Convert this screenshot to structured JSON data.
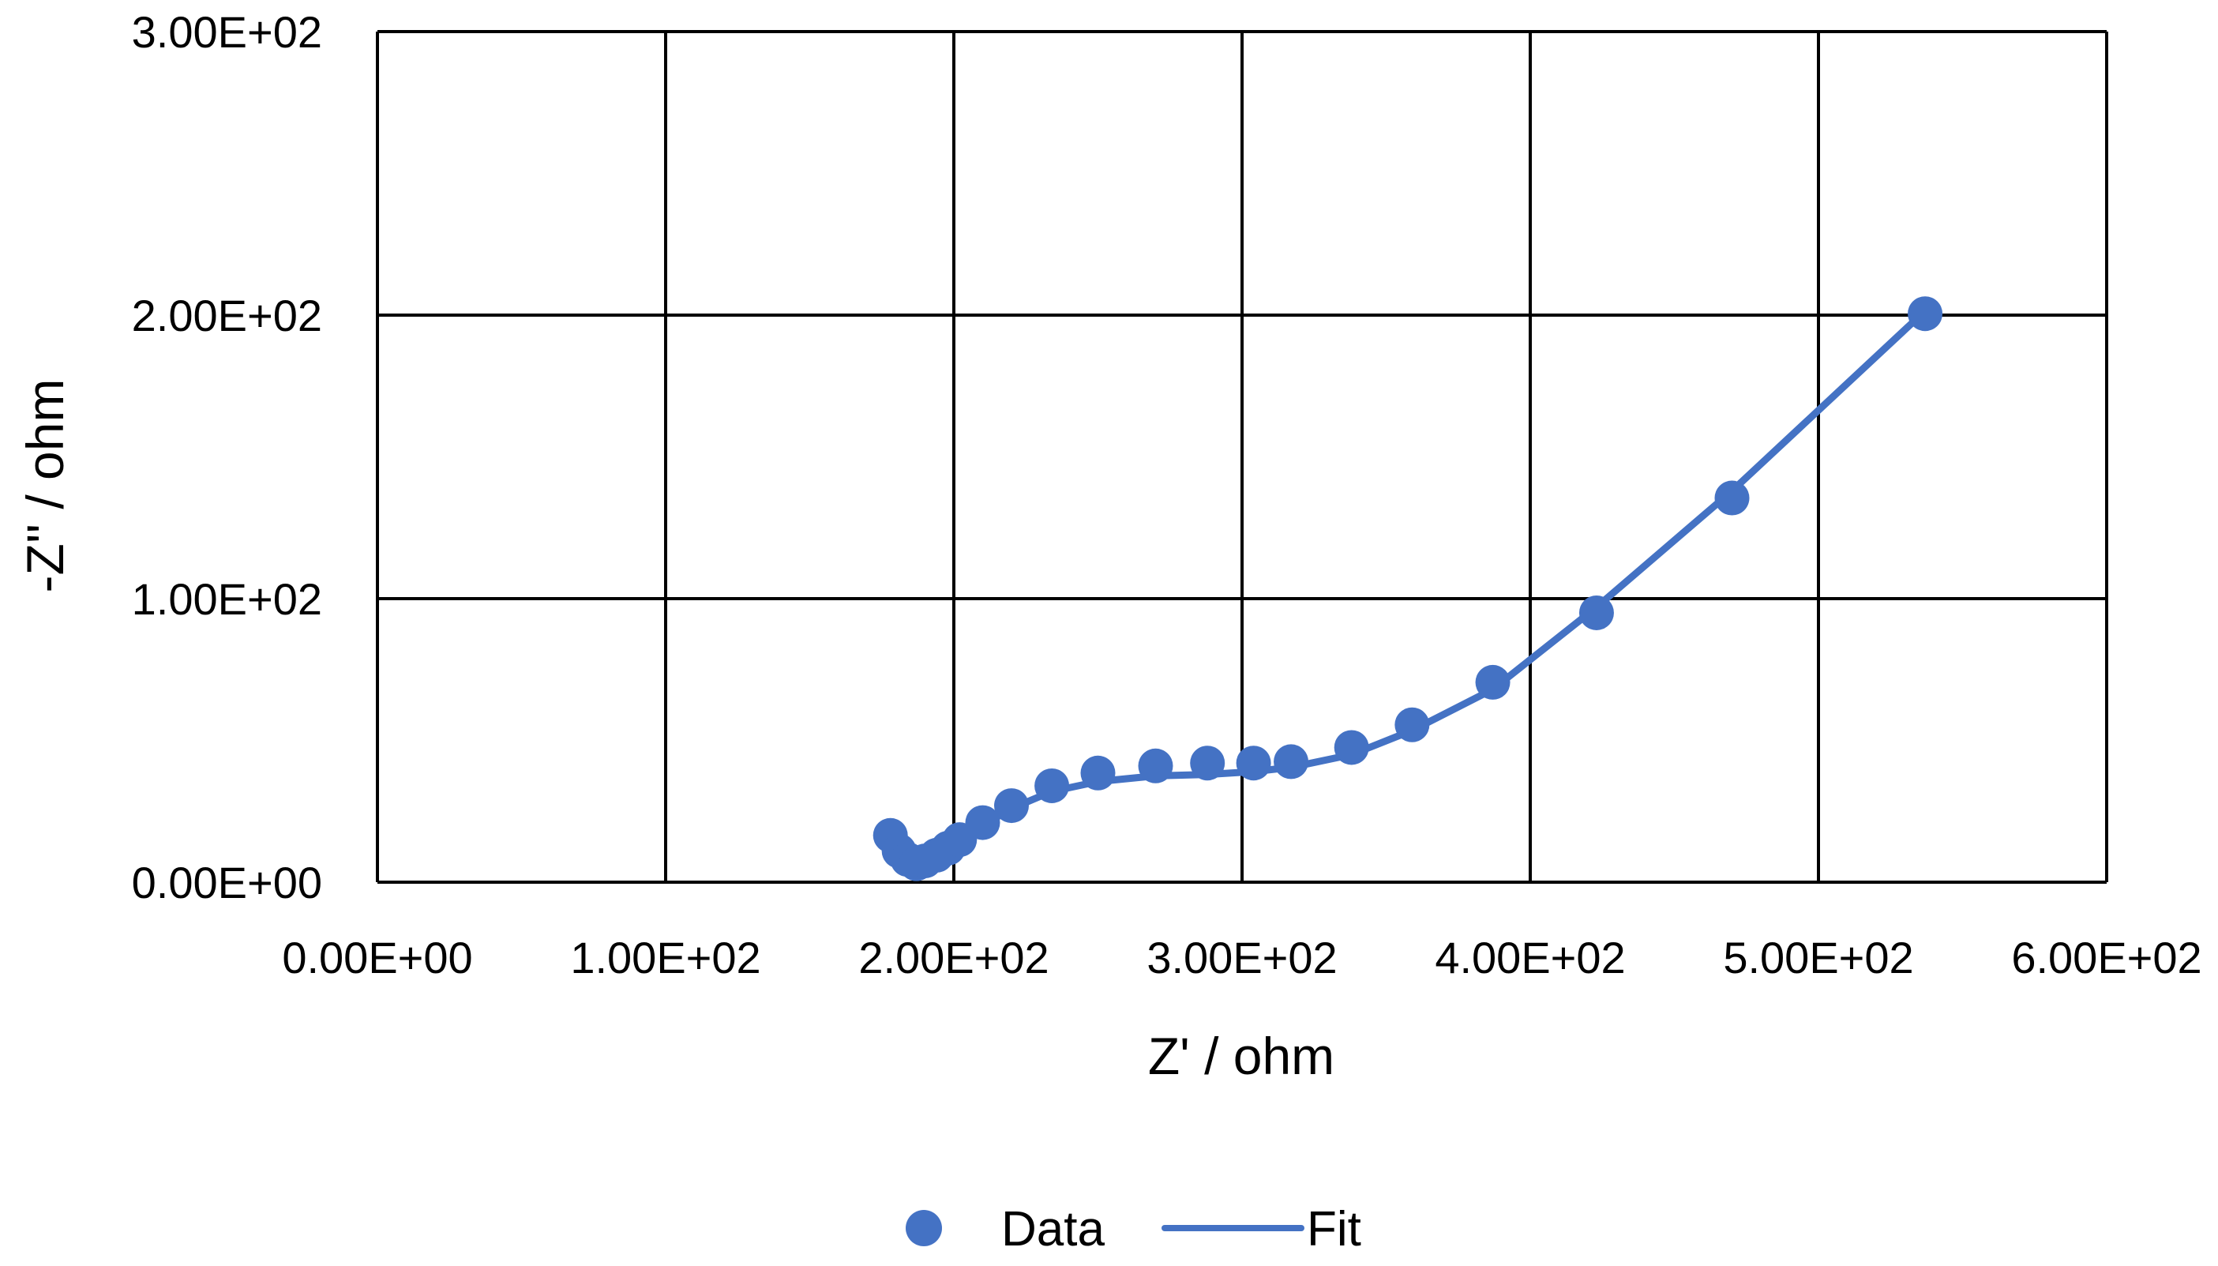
{
  "chart_data": {
    "type": "scatter",
    "xlabel": "Z' / ohm",
    "ylabel": "-Z'' / ohm",
    "xlim": [
      0,
      600
    ],
    "ylim": [
      0,
      300
    ],
    "x_ticks": [
      0,
      100,
      200,
      300,
      400,
      500,
      600
    ],
    "y_ticks": [
      0,
      100,
      200,
      300
    ],
    "x_tick_labels": [
      "0.00E+00",
      "1.00E+02",
      "2.00E+02",
      "3.00E+02",
      "4.00E+02",
      "5.00E+02",
      "6.00E+02"
    ],
    "y_tick_labels": [
      "0.00E+00",
      "1.00E+02",
      "2.00E+02",
      "3.00E+02"
    ],
    "grid": true,
    "legend_position": "bottom",
    "series_color": "#4472C4",
    "series": [
      {
        "name": "Data",
        "kind": "markers",
        "x": [
          178,
          181,
          184,
          187,
          190,
          194,
          198,
          202,
          210,
          220,
          234,
          250,
          270,
          288,
          304,
          317,
          338,
          359,
          387,
          423,
          470,
          537
        ],
        "y": [
          16.5,
          11,
          8,
          6.5,
          7.5,
          9.5,
          12,
          15,
          21,
          27,
          34,
          38.5,
          41,
          42,
          42,
          42.5,
          47.5,
          55.5,
          70.5,
          95,
          135.5,
          200.5
        ]
      },
      {
        "name": "Fit",
        "kind": "line",
        "x": [
          178,
          181,
          184,
          187,
          190,
          194,
          198,
          202,
          210,
          220,
          234,
          250,
          270,
          288,
          304,
          317,
          338,
          359,
          387,
          423,
          470,
          537
        ],
        "y": [
          16,
          11,
          8,
          6.5,
          7.5,
          9.5,
          12,
          15,
          20,
          26,
          32,
          35.5,
          37.5,
          38,
          39,
          40.5,
          45,
          53.5,
          68,
          97,
          138,
          201.5
        ]
      }
    ]
  }
}
